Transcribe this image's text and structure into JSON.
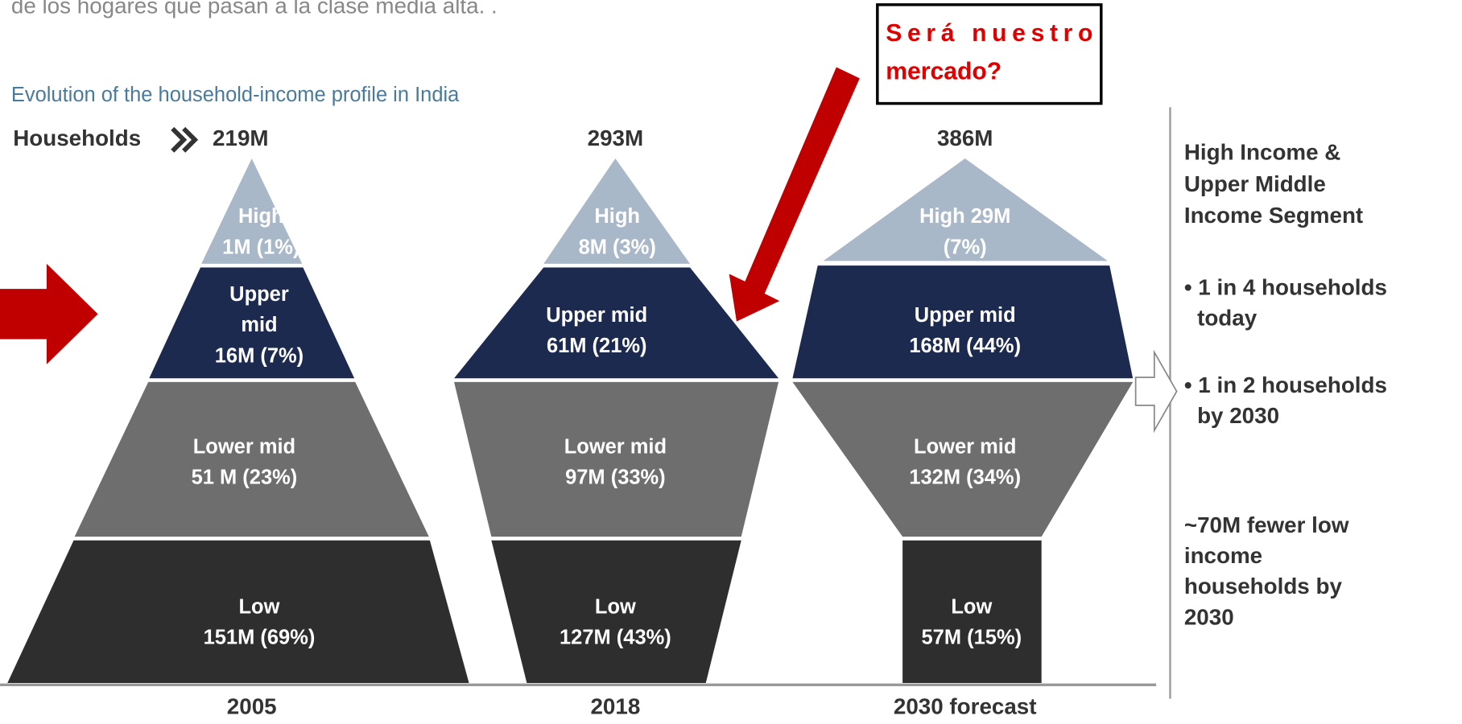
{
  "top_text": "de los hogares que pasan a la clase media alta. .",
  "callout": {
    "lines": [
      "Será nuestro",
      "mercado?"
    ]
  },
  "subtitle": "Evolution of the household-income profile in India",
  "households_label": "Households",
  "columns": [
    {
      "total": "219M",
      "year": "2005",
      "segments": [
        {
          "lines": [
            "High",
            "1M (1%)"
          ]
        },
        {
          "lines": [
            "Upper",
            "mid",
            "16M (7%)"
          ]
        },
        {
          "lines": [
            "Lower mid",
            "51 M (23%)"
          ]
        },
        {
          "lines": [
            "Low",
            "151M (69%)"
          ]
        }
      ]
    },
    {
      "total": "293M",
      "year": "2018",
      "segments": [
        {
          "lines": [
            "High",
            "8M (3%)"
          ]
        },
        {
          "lines": [
            "Upper mid",
            "61M (21%)"
          ]
        },
        {
          "lines": [
            "Lower mid",
            "97M (33%)"
          ]
        },
        {
          "lines": [
            "Low",
            "127M (43%)"
          ]
        }
      ]
    },
    {
      "total": "386M",
      "year": "2030 forecast",
      "segments": [
        {
          "lines": [
            "High 29M",
            "(7%)"
          ]
        },
        {
          "lines": [
            "Upper mid",
            "168M (44%)"
          ]
        },
        {
          "lines": [
            "Lower mid",
            "132M (34%)"
          ]
        },
        {
          "lines": [
            "Low",
            "57M (15%)"
          ]
        }
      ]
    }
  ],
  "panel": {
    "heading": [
      "High Income &",
      "Upper Middle",
      "Income Segment"
    ],
    "bullets": [
      [
        "• 1 in 4 households",
        "today"
      ],
      [
        "• 1 in 2 households",
        "by 2030"
      ]
    ],
    "note": [
      "~70M fewer low",
      "income",
      "households by",
      "2030"
    ]
  }
}
